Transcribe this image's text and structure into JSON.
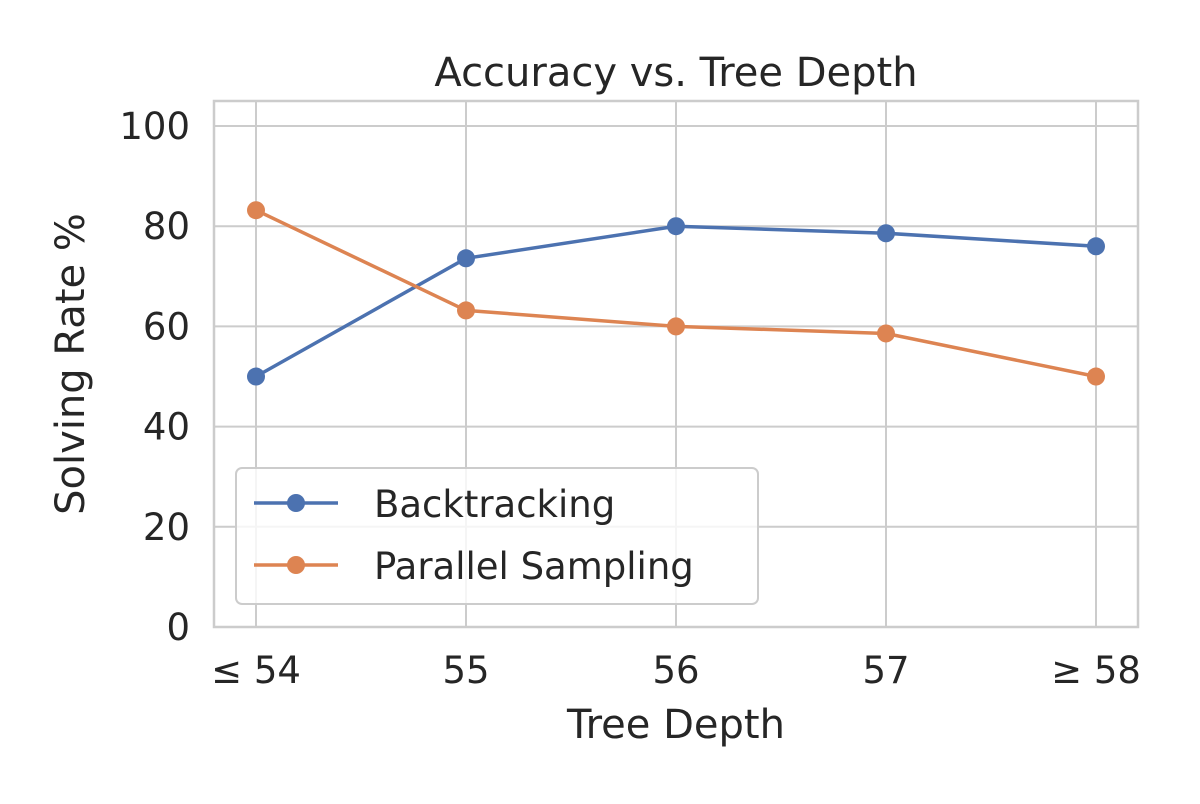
{
  "chart_data": {
    "type": "line",
    "title": "Accuracy vs. Tree Depth",
    "xlabel": "Tree Depth",
    "ylabel": "Solving Rate %",
    "categories": [
      "≤ 54",
      "55",
      "56",
      "57",
      "≥ 58"
    ],
    "ylim": [
      0,
      105
    ],
    "yticks": [
      0,
      20,
      40,
      60,
      80,
      100
    ],
    "grid": true,
    "legend_position": "lower-left",
    "series": [
      {
        "name": "Backtracking",
        "color": "#4c72b0",
        "values": [
          50,
          73.6,
          80,
          78.6,
          76
        ]
      },
      {
        "name": "Parallel Sampling",
        "color": "#dd8452",
        "values": [
          83.2,
          63.2,
          60,
          58.6,
          50
        ]
      }
    ]
  }
}
